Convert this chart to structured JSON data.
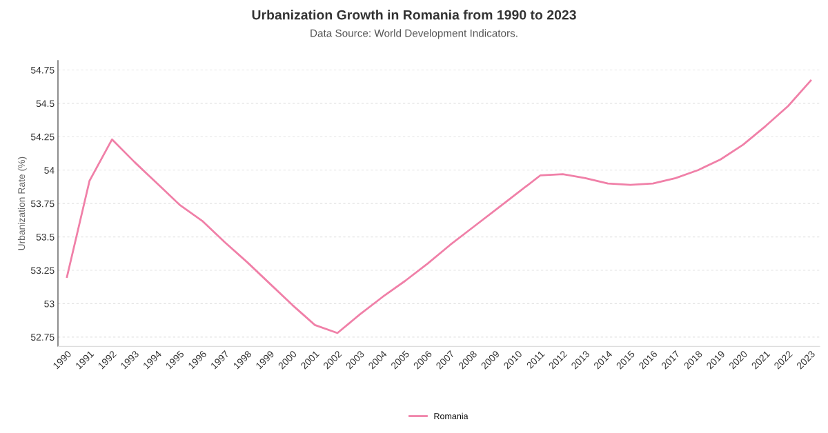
{
  "chart_data": {
    "type": "line",
    "title": "Urbanization Growth in Romania from 1990 to 2023",
    "subtitle": "Data Source: World Development Indicators.",
    "ylabel": "Urbanization Rate (%)",
    "categories": [
      "1990",
      "1991",
      "1992",
      "1993",
      "1994",
      "1995",
      "1996",
      "1997",
      "1998",
      "1999",
      "2000",
      "2001",
      "2002",
      "2003",
      "2004",
      "2005",
      "2006",
      "2007",
      "2008",
      "2009",
      "2010",
      "2011",
      "2012",
      "2013",
      "2014",
      "2015",
      "2016",
      "2017",
      "2018",
      "2019",
      "2020",
      "2021",
      "2022",
      "2023"
    ],
    "series": [
      {
        "name": "Romania",
        "color": "#f080a8",
        "values": [
          53.2,
          53.92,
          54.23,
          54.06,
          53.9,
          53.74,
          53.62,
          53.46,
          53.31,
          53.15,
          52.99,
          52.84,
          52.78,
          52.92,
          53.05,
          53.17,
          53.3,
          53.44,
          53.57,
          53.7,
          53.83,
          53.96,
          53.97,
          53.94,
          53.9,
          53.89,
          53.9,
          53.94,
          54.0,
          54.08,
          54.19,
          54.33,
          54.48,
          54.67
        ]
      }
    ],
    "ylim": [
      52.68,
      54.82
    ],
    "yticks": [
      52.75,
      {
        "value": 53,
        "label": "53"
      },
      53.25,
      53.5,
      53.75,
      {
        "value": 54,
        "label": "54"
      },
      54.25,
      54.5,
      54.75
    ],
    "grid": "y",
    "legend": "bottom",
    "marker": "none",
    "line_style": "solid"
  }
}
